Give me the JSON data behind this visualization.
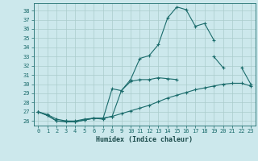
{
  "xlabel": "Humidex (Indice chaleur)",
  "background_color": "#cce8ec",
  "grid_color": "#aacccc",
  "line_color": "#1a6b6b",
  "xlim": [
    -0.5,
    23.5
  ],
  "ylim": [
    25.5,
    38.8
  ],
  "yticks": [
    26,
    27,
    28,
    29,
    30,
    31,
    32,
    33,
    34,
    35,
    36,
    37,
    38
  ],
  "xticks": [
    0,
    1,
    2,
    3,
    4,
    5,
    6,
    7,
    8,
    9,
    10,
    11,
    12,
    13,
    14,
    15,
    16,
    17,
    18,
    19,
    20,
    21,
    22,
    23
  ],
  "line1_y": [
    27.0,
    26.6,
    26.0,
    26.0,
    25.9,
    26.1,
    26.3,
    26.3,
    26.5,
    29.3,
    30.5,
    32.8,
    33.1,
    34.3,
    37.2,
    38.4,
    38.1,
    36.3,
    36.6,
    34.8,
    null,
    null,
    null,
    null
  ],
  "line2_y": [
    27.0,
    26.6,
    26.0,
    25.9,
    25.9,
    26.1,
    26.3,
    26.2,
    29.5,
    29.3,
    30.3,
    30.5,
    30.5,
    30.7,
    30.6,
    30.5,
    null,
    null,
    null,
    33.0,
    31.8,
    null,
    31.8,
    30.0
  ],
  "line3_y": [
    27.0,
    26.7,
    26.2,
    26.0,
    26.0,
    26.2,
    26.3,
    26.3,
    26.5,
    26.8,
    27.1,
    27.4,
    27.7,
    28.1,
    28.5,
    28.8,
    29.1,
    29.4,
    29.6,
    29.8,
    30.0,
    30.1,
    30.1,
    29.8
  ]
}
